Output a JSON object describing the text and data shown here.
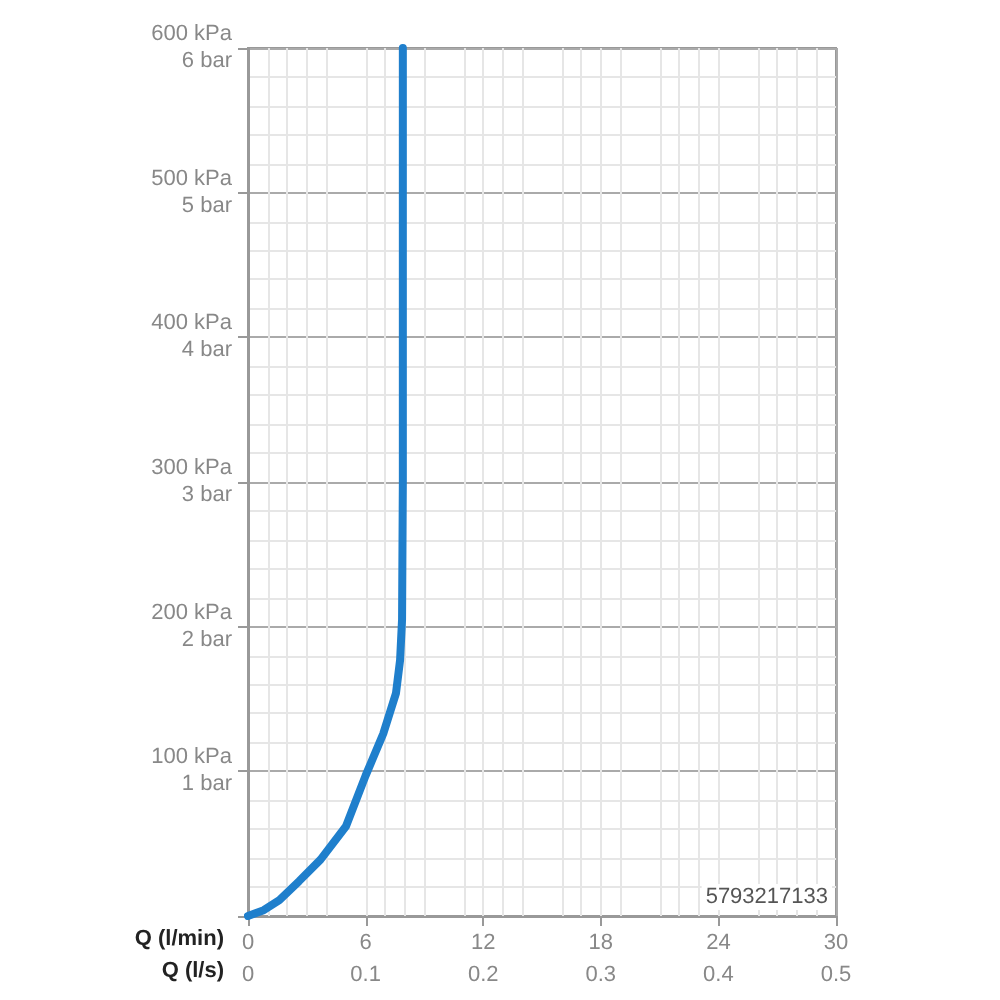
{
  "chart_data": {
    "type": "line",
    "xlabel": "Q (l/min)",
    "x2label": "Q (l/s)",
    "x": [
      0,
      0.8,
      1.6,
      2.6,
      3.7,
      5.0,
      6.0,
      6.9,
      7.55,
      7.76,
      7.86,
      7.9,
      7.9
    ],
    "series": [
      {
        "color": "#1f7fcc",
        "values": [
          0,
          4,
          11,
          24,
          39,
          62,
          97,
          126,
          154,
          177,
          205,
          300,
          600
        ]
      }
    ],
    "xlim": [
      0,
      30
    ],
    "xticks": [
      0,
      6,
      12,
      18,
      24,
      30
    ],
    "x2lim": [
      0,
      0.5
    ],
    "x2ticks": [
      0,
      0.1,
      0.2,
      0.3,
      0.4,
      0.5
    ],
    "ylim": [
      0,
      600
    ],
    "yticks": [
      {
        "value": 0,
        "label": null
      },
      {
        "value": 100,
        "label": "100 kPa"
      },
      {
        "value": 200,
        "label": "200 kPa"
      },
      {
        "value": 300,
        "label": "300 kPa"
      },
      {
        "value": 400,
        "label": "400 kPa"
      },
      {
        "value": 500,
        "label": "500 kPa"
      },
      {
        "value": 600,
        "label": "600 kPa"
      }
    ],
    "y2lim": [
      0,
      6
    ],
    "y2ticks": [
      {
        "value": 0,
        "label": null
      },
      {
        "value": 1,
        "label": "1 bar"
      },
      {
        "value": 2,
        "label": "2 bar"
      },
      {
        "value": 3,
        "label": "3 bar"
      },
      {
        "value": 4,
        "label": "4 bar"
      },
      {
        "value": 5,
        "label": "5 bar"
      },
      {
        "value": 6,
        "label": "6 bar"
      }
    ],
    "grid": true,
    "marker": "none",
    "line_style": "solid",
    "annotations": [
      "5793217133"
    ]
  }
}
